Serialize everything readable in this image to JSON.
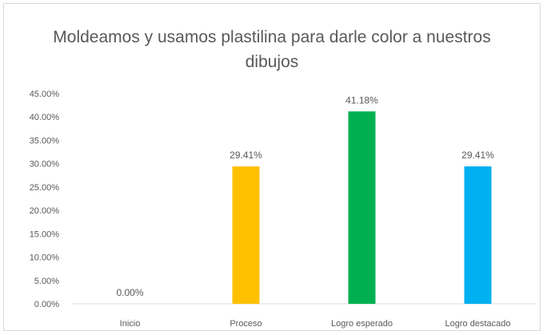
{
  "chart_data": {
    "type": "bar",
    "title": "Moldeamos y usamos plastilina para darle color a nuestros dibujos",
    "xlabel": "",
    "ylabel": "",
    "categories": [
      "Inicio",
      "Proceso",
      "Logro esperado",
      "Logro destacado"
    ],
    "values": [
      0.0,
      29.41,
      41.18,
      29.41
    ],
    "data_labels": [
      "0.00%",
      "29.41%",
      "41.18%",
      "29.41%"
    ],
    "colors": [
      "#ff0000",
      "#ffc000",
      "#00b050",
      "#00b0f0"
    ],
    "ylim": [
      0,
      45
    ],
    "yticks": [
      "0.00%",
      "5.00%",
      "10.00%",
      "15.00%",
      "20.00%",
      "25.00%",
      "30.00%",
      "35.00%",
      "40.00%",
      "45.00%"
    ],
    "grid": false,
    "legend": "none"
  }
}
